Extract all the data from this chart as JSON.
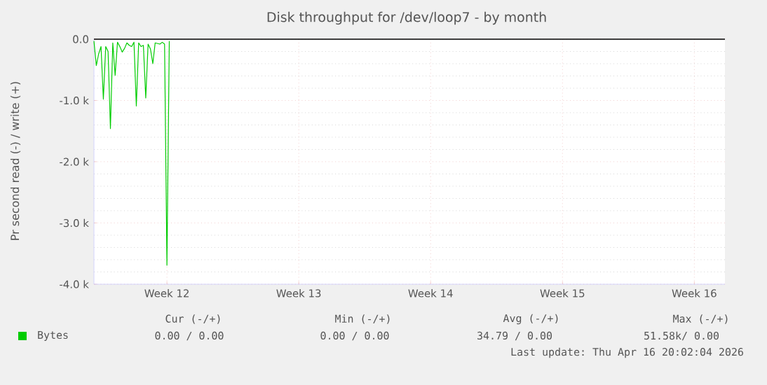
{
  "chart_data": {
    "type": "line",
    "title": "Disk throughput for /dev/loop7 - by month",
    "ylabel": "Pr second read (-) / write (+)",
    "categories": [
      null,
      null,
      null,
      null,
      null,
      null,
      null,
      null,
      null,
      null,
      null,
      null,
      null,
      null,
      null,
      null,
      null,
      null,
      null,
      null,
      null,
      null,
      null,
      null,
      null,
      null,
      null,
      null,
      null,
      null,
      null,
      "Week 12",
      null,
      null,
      null,
      null,
      null,
      null,
      null,
      null,
      null,
      null,
      null,
      null,
      null,
      null,
      null,
      null,
      null,
      null,
      null,
      null,
      null,
      null,
      null,
      null,
      null,
      null,
      null,
      null,
      null,
      null,
      null,
      null,
      null,
      null,
      null,
      null,
      null,
      null,
      null,
      null,
      null,
      null,
      null,
      null,
      null,
      null,
      null,
      null,
      null,
      null,
      null,
      null,
      null,
      null,
      null,
      "Week 13",
      null,
      null,
      null,
      null,
      null,
      null,
      null,
      null,
      null,
      null,
      null,
      null,
      null,
      null,
      null,
      null,
      null,
      null,
      null,
      null,
      null,
      null,
      null,
      null,
      null,
      null,
      null,
      null,
      null,
      null,
      null,
      null,
      null,
      null,
      null,
      null,
      null,
      null,
      null,
      null,
      null,
      null,
      null,
      null,
      null,
      null,
      null,
      null,
      null,
      null,
      null,
      null,
      null,
      null,
      null,
      "Week 14",
      null,
      null,
      null,
      null,
      null,
      null,
      null,
      null,
      null,
      null,
      null,
      null,
      null,
      null,
      null,
      null,
      null,
      null,
      null,
      null,
      null,
      null,
      null,
      null,
      null,
      null,
      null,
      null,
      null,
      null,
      null,
      null,
      null,
      null,
      null,
      null,
      null,
      null,
      null,
      null,
      null,
      null,
      null,
      null,
      null,
      null,
      null,
      null,
      null,
      null,
      null,
      null,
      null,
      null,
      null,
      "Week 15",
      null,
      null,
      null,
      null,
      null,
      null,
      null,
      null,
      null,
      null,
      null,
      null,
      null,
      null,
      null,
      null,
      null,
      null,
      null,
      null,
      null,
      null,
      null,
      null,
      null,
      null,
      null,
      null,
      null,
      null,
      null,
      null,
      null,
      null,
      null,
      null,
      null,
      null,
      null,
      null,
      null,
      null,
      null,
      null,
      null,
      null,
      null,
      null,
      null,
      null,
      null,
      null,
      null,
      null,
      null,
      "Week 16",
      null,
      null,
      null,
      null,
      null,
      null,
      null,
      null,
      null,
      null,
      null,
      null,
      null
    ],
    "ylim": [
      -4000,
      0
    ],
    "yticks": [
      {
        "value": 0,
        "label": "0.0"
      },
      {
        "value": -1000,
        "label": "-1.0 k"
      },
      {
        "value": -2000,
        "label": "-2.0 k"
      },
      {
        "value": -3000,
        "label": "-3.0 k"
      },
      {
        "value": -4000,
        "label": "-4.0 k"
      }
    ],
    "grid": true,
    "legend": "bottom",
    "ref_lines": [
      {
        "axis": "y",
        "value": 0,
        "color": "#000000"
      }
    ],
    "series": [
      {
        "name": "Bytes",
        "color": "#00cc00",
        "values": [
          -30,
          -430,
          -240,
          -120,
          -980,
          -120,
          -200,
          -1460,
          -60,
          -590,
          -50,
          -120,
          -210,
          -150,
          -60,
          -100,
          -120,
          -50,
          -1090,
          -60,
          -120,
          -100,
          -960,
          -80,
          -160,
          -400,
          -60,
          -70,
          -80,
          -50,
          -80,
          -3690,
          -30,
          null,
          null,
          null,
          null,
          null,
          null,
          null,
          null,
          null,
          null,
          null,
          null,
          null,
          null,
          null,
          null,
          null,
          null,
          null,
          null,
          null,
          null,
          null,
          null,
          null,
          null,
          null,
          null,
          null,
          null,
          null,
          null,
          null,
          null,
          null,
          null,
          null,
          null,
          null,
          null,
          null,
          null,
          null,
          null,
          null,
          null,
          null,
          null,
          null,
          null,
          null,
          null,
          null,
          null,
          null,
          null,
          null,
          null,
          null,
          null,
          null,
          null,
          null,
          null,
          null,
          null,
          null,
          null,
          null,
          null,
          null,
          null,
          null,
          null,
          null,
          null,
          null,
          null,
          null,
          null,
          null,
          null,
          null,
          null,
          null,
          null,
          null,
          null,
          null,
          null,
          null,
          null,
          null,
          null,
          null,
          null,
          null,
          null,
          null,
          null,
          null,
          null,
          null,
          null,
          null,
          null,
          null,
          null,
          null,
          null,
          null,
          null,
          null,
          null,
          null,
          null,
          null,
          null,
          null,
          null,
          null,
          null,
          null,
          null,
          null,
          null,
          null,
          null,
          null,
          null,
          null,
          null,
          null,
          null,
          null,
          null,
          null,
          null,
          null,
          null,
          null,
          null,
          null,
          null,
          null,
          null,
          null,
          null,
          null,
          null,
          null,
          null,
          null,
          null,
          null,
          null,
          null,
          null,
          null,
          null,
          null,
          null,
          null,
          null,
          null,
          null,
          null,
          null,
          null,
          null,
          null,
          null,
          null,
          null,
          null,
          null,
          null,
          null,
          null,
          null,
          null,
          null,
          null,
          null,
          null,
          null,
          null,
          null,
          null,
          null,
          null,
          null,
          null,
          null,
          null,
          null,
          null,
          null,
          null,
          null,
          null,
          null,
          null,
          null,
          null,
          null,
          null,
          null,
          null,
          null,
          null,
          null,
          null,
          null,
          null,
          null,
          null,
          null,
          null,
          null,
          null,
          null,
          null,
          null,
          null,
          null,
          null,
          null,
          null,
          null,
          null,
          null,
          null,
          null,
          null,
          null
        ]
      }
    ],
    "annotations": [
      "Cur (-/+)",
      "Min (-/+)",
      "Avg (-/+)",
      "Max (-/+)",
      "0.00 /    0.00",
      "0.00 /    0.00",
      "34.79 /    0.00",
      "51.58k/    0.00",
      "Last update: Thu Apr 16 20:02:04 2026"
    ]
  }
}
